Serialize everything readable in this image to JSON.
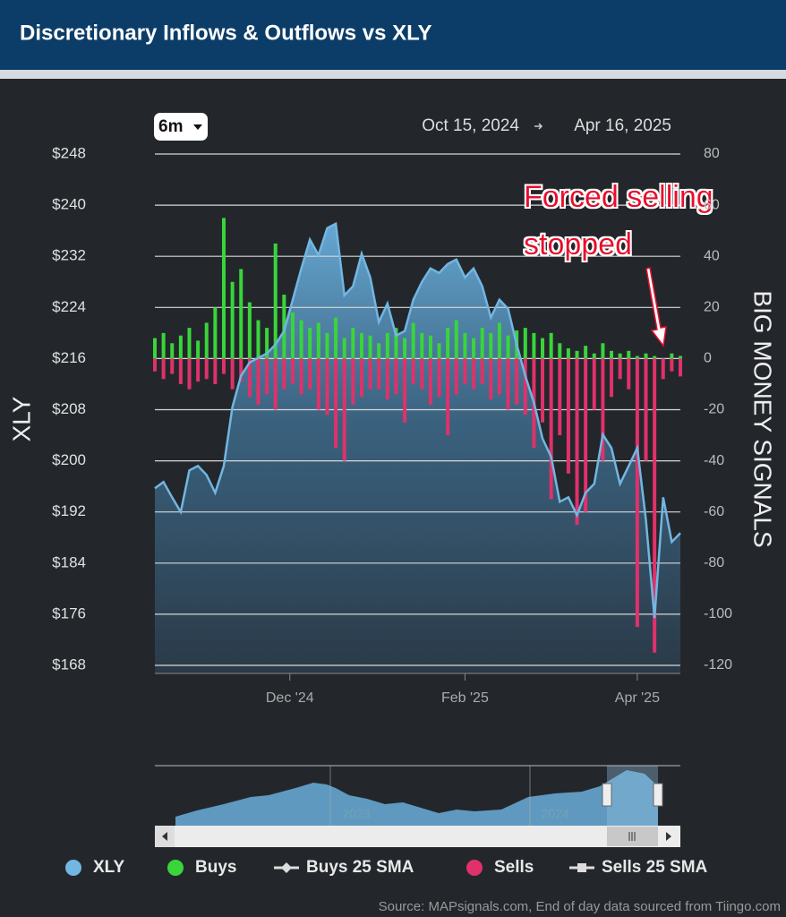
{
  "chart_data": {
    "type": "bar-line",
    "title": "Discretionary Inflows & Outflows vs XLY",
    "range_button": "6m",
    "range": {
      "start": "Oct 15, 2024",
      "end": "Apr 16, 2025"
    },
    "ylabel": "XLY",
    "y2label": "BIG MONEY SIGNALS",
    "annotation": [
      "Forced selling",
      "stopped"
    ],
    "x": [
      "2024-10-15",
      "2024-10-18",
      "2024-10-21",
      "2024-10-24",
      "2024-10-27",
      "2024-10-30",
      "2024-11-02",
      "2024-11-05",
      "2024-11-08",
      "2024-11-11",
      "2024-11-14",
      "2024-11-17",
      "2024-11-20",
      "2024-11-23",
      "2024-11-26",
      "2024-11-29",
      "2024-12-02",
      "2024-12-05",
      "2024-12-08",
      "2024-12-11",
      "2024-12-14",
      "2024-12-17",
      "2024-12-20",
      "2024-12-23",
      "2024-12-26",
      "2024-12-29",
      "2025-01-01",
      "2025-01-04",
      "2025-01-07",
      "2025-01-10",
      "2025-01-13",
      "2025-01-16",
      "2025-01-19",
      "2025-01-22",
      "2025-01-25",
      "2025-01-28",
      "2025-01-31",
      "2025-02-03",
      "2025-02-06",
      "2025-02-09",
      "2025-02-12",
      "2025-02-15",
      "2025-02-18",
      "2025-02-21",
      "2025-02-24",
      "2025-02-27",
      "2025-03-02",
      "2025-03-05",
      "2025-03-08",
      "2025-03-11",
      "2025-03-14",
      "2025-03-17",
      "2025-03-20",
      "2025-03-23",
      "2025-03-26",
      "2025-03-29",
      "2025-04-01",
      "2025-04-04",
      "2025-04-07",
      "2025-04-10",
      "2025-04-13",
      "2025-04-16"
    ],
    "xlim": [
      "2024-10-15",
      "2025-04-16"
    ],
    "xticks": [
      {
        "value": "2024-12-01",
        "label": "Dec '24"
      },
      {
        "value": "2025-01-31",
        "label": "Feb '25"
      },
      {
        "value": "2025-04-01",
        "label": "Apr '25"
      }
    ],
    "ylim": [
      168,
      248
    ],
    "yticks": [
      {
        "value": 168,
        "label": "$168"
      },
      {
        "value": 176,
        "label": "$176"
      },
      {
        "value": 184,
        "label": "$184"
      },
      {
        "value": 192,
        "label": "$192"
      },
      {
        "value": 200,
        "label": "$200"
      },
      {
        "value": 208,
        "label": "$208"
      },
      {
        "value": 216,
        "label": "$216"
      },
      {
        "value": 224,
        "label": "$224"
      },
      {
        "value": 232,
        "label": "$232"
      },
      {
        "value": 240,
        "label": "$240"
      },
      {
        "value": 248,
        "label": "$248"
      }
    ],
    "y2lim": [
      -120,
      80
    ],
    "y2ticks": [
      -120,
      -100,
      -80,
      -60,
      -40,
      -20,
      0,
      20,
      40,
      60,
      80
    ],
    "grid": true,
    "series": [
      {
        "name": "XLY",
        "color": "#72b6e2",
        "kind": "area",
        "values": [
          195.7,
          196.7,
          194.3,
          192,
          198.5,
          199.2,
          197.8,
          195,
          199.2,
          208.4,
          213.3,
          215.4,
          216.1,
          216.8,
          218.2,
          220.3,
          225.2,
          230.1,
          234.6,
          232.2,
          236.4,
          237.1,
          225.9,
          227.3,
          232.4,
          228.7,
          221.7,
          224.6,
          219.6,
          220.3,
          225.2,
          228,
          230.1,
          229.4,
          230.8,
          231.5,
          228.7,
          230.1,
          227.3,
          222.4,
          225.2,
          223.8,
          218.2,
          213.3,
          209.1,
          203.5,
          200.6,
          193.6,
          194.3,
          191.5,
          195,
          196.4,
          204.1,
          202,
          196.4,
          199.2,
          202,
          190.8,
          175.4,
          194.3,
          187.3,
          188.7
        ]
      },
      {
        "name": "Buys",
        "color": "#39d53a",
        "kind": "bar",
        "axis": "y2",
        "values": [
          8,
          10,
          6,
          9,
          12,
          7,
          14,
          20,
          55,
          30,
          35,
          22,
          15,
          12,
          45,
          25,
          18,
          15,
          12,
          14,
          10,
          16,
          8,
          12,
          10,
          9,
          6,
          10,
          12,
          8,
          14,
          10,
          9,
          6,
          12,
          15,
          10,
          8,
          12,
          10,
          14,
          9,
          11,
          12,
          10,
          8,
          10,
          6,
          4,
          3,
          5,
          2,
          6,
          3,
          2,
          3,
          1,
          2,
          1,
          0,
          2,
          1
        ]
      },
      {
        "name": "Sells",
        "color": "#e0316b",
        "kind": "bar",
        "axis": "y2",
        "values": [
          -5,
          -8,
          -6,
          -10,
          -12,
          -9,
          -8,
          -10,
          -6,
          -12,
          -9,
          -15,
          -18,
          -14,
          -20,
          -12,
          -10,
          -14,
          -12,
          -20,
          -22,
          -35,
          -40,
          -18,
          -15,
          -12,
          -12,
          -16,
          -14,
          -25,
          -10,
          -12,
          -18,
          -15,
          -30,
          -14,
          -10,
          -12,
          -10,
          -16,
          -14,
          -20,
          -18,
          -22,
          -35,
          -25,
          -55,
          -30,
          -45,
          -65,
          -60,
          -20,
          -40,
          -15,
          -8,
          -12,
          -105,
          -40,
          -115,
          -8,
          -5,
          -7
        ]
      }
    ],
    "sma_legend": [
      "Buys 25 SMA",
      "Sells 25 SMA"
    ],
    "navigator_labels": [
      "2023",
      "2024"
    ],
    "source": "Source: MAPsignals.com, End of day data sourced from Tiingo.com"
  }
}
